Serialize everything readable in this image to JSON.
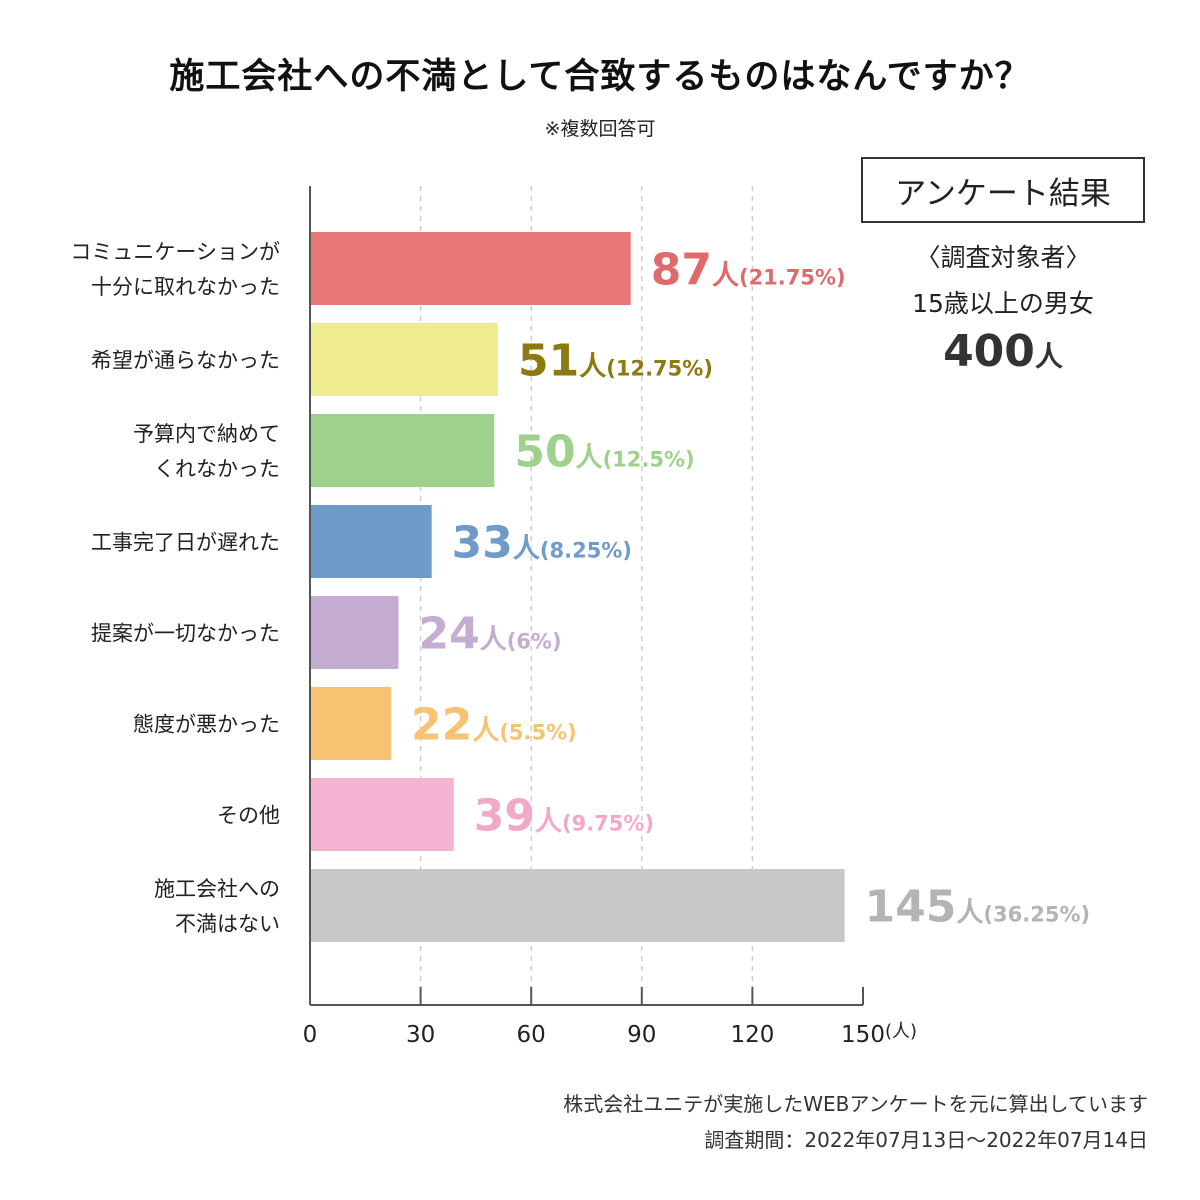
{
  "header": {
    "title": "施工会社への不満として合致するものはなんですか？",
    "subtitle": "※複数回答可"
  },
  "survey_info": {
    "box_label": "アンケート結果",
    "target_label": "〈調査対象者〉",
    "target_desc": "15歳以上の男女",
    "target_count": "400",
    "target_unit": "人"
  },
  "footer": {
    "note": "株式会社ユニテが実施したWEBアンケートを元に算出しています",
    "period": "調査期間：2022年07月13日〜2022年07月14日"
  },
  "chart_data": {
    "type": "bar",
    "orientation": "horizontal",
    "title": "施工会社への不満として合致するものはなんですか？",
    "xlabel": "(人)",
    "ylabel": "",
    "xlim": [
      0,
      150
    ],
    "xticks": [
      0,
      30,
      60,
      90,
      120,
      150
    ],
    "grid": true,
    "categories": [
      [
        "コミュニケーションが",
        "十分に取れなかった"
      ],
      [
        "希望が通らなかった"
      ],
      [
        "予算内で納めて",
        "くれなかった"
      ],
      [
        "工事完了日が遅れた"
      ],
      [
        "提案が一切なかった"
      ],
      [
        "態度が悪かった"
      ],
      [
        "その他"
      ],
      [
        "施工会社への",
        "不満はない"
      ]
    ],
    "values": [
      87,
      51,
      50,
      33,
      24,
      22,
      39,
      145
    ],
    "percent_labels": [
      "(21.75%)",
      "(12.75%)",
      "(12.5%)",
      "(8.25%)",
      "(6%)",
      "(5.5%)",
      "(9.75%)",
      "(36.25%)"
    ],
    "value_unit": "人",
    "colors": [
      "#e87878",
      "#eeec8e",
      "#9ed28c",
      "#6f9bcb",
      "#c4acd2",
      "#f7c272",
      "#f4b3d1",
      "#c8c8c8"
    ],
    "label_colors": [
      "#e06a6a",
      "#8c7a10",
      "#9ed28c",
      "#6f9bcb",
      "#c4acd2",
      "#f7c272",
      "#f4a8c8",
      "#b4b4b4"
    ]
  }
}
